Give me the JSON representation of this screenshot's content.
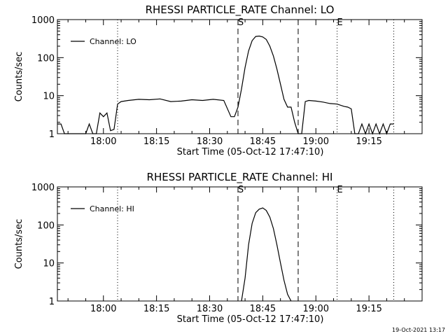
{
  "footer_timestamp": "19-Oct-2021 13:17",
  "chart_data": [
    {
      "type": "line",
      "title": "RHESSI PARTICLE_RATE Channel: LO",
      "xlabel": "Start Time (05-Oct-12 17:47:10)",
      "ylabel": "Counts/sec",
      "y_scale": "log",
      "ylim": [
        1,
        1000
      ],
      "xlim": [
        "17:47",
        "19:30"
      ],
      "x_ticks": [
        "18:00",
        "18:15",
        "18:30",
        "18:45",
        "19:00",
        "19:15"
      ],
      "y_ticks": [
        "1",
        "10",
        "100",
        "1000"
      ],
      "legend": {
        "label": "Channel: LO",
        "position": "top-left"
      },
      "markers": [
        {
          "label": "S",
          "time": "18:38"
        },
        {
          "label": "E",
          "time": "19:06"
        }
      ],
      "vlines_dashed": [
        "18:38",
        "18:55"
      ],
      "vlines_dotted": [
        "18:04",
        "19:06",
        "19:22"
      ],
      "series": [
        {
          "x": [
            "17:47",
            "17:48",
            "17:49",
            "17:50",
            "17:55",
            "17:56",
            "17:57",
            "17:58",
            "17:59",
            "18:00",
            "18:01",
            "18:02",
            "18:03",
            "18:04",
            "18:05",
            "18:07",
            "18:10",
            "18:13",
            "18:16",
            "18:19",
            "18:22",
            "18:25",
            "18:28",
            "18:31",
            "18:34",
            "18:36",
            "18:37",
            "18:38",
            "18:39",
            "18:40",
            "18:41",
            "18:42",
            "18:43",
            "18:44",
            "18:45",
            "18:46",
            "18:47",
            "18:48",
            "18:49",
            "18:50",
            "18:51",
            "18:52",
            "18:53",
            "18:54",
            "18:55",
            "18:56",
            "18:57",
            "18:58",
            "19:00",
            "19:02",
            "19:04",
            "19:06",
            "19:08",
            "19:09",
            "19:10",
            "19:11",
            "19:12",
            "19:13",
            "19:14",
            "19:15",
            "19:16",
            "19:17",
            "19:18",
            "19:19",
            "19:20",
            "19:21",
            "19:22"
          ],
          "y": [
            1.8,
            1.8,
            1,
            1,
            1,
            1.8,
            1,
            1,
            3.5,
            2.8,
            3.5,
            1.2,
            1.3,
            6,
            7,
            7.5,
            8,
            7.8,
            8.2,
            7,
            7.2,
            7.8,
            7.5,
            8,
            7.5,
            2.8,
            2.8,
            5,
            15,
            55,
            150,
            280,
            360,
            370,
            350,
            300,
            200,
            110,
            50,
            20,
            8,
            5,
            5,
            2,
            1,
            1,
            7,
            7.5,
            7.2,
            6.8,
            6.2,
            6,
            5.2,
            5,
            4.5,
            1,
            1,
            1.8,
            1,
            1.8,
            1,
            1.8,
            1,
            1.8,
            1,
            1.8,
            1.8
          ]
        }
      ]
    },
    {
      "type": "line",
      "title": "RHESSI PARTICLE_RATE Channel: HI",
      "xlabel": "Start Time (05-Oct-12 17:47:10)",
      "ylabel": "Counts/sec",
      "y_scale": "log",
      "ylim": [
        1,
        1000
      ],
      "xlim": [
        "17:47",
        "19:30"
      ],
      "x_ticks": [
        "18:00",
        "18:15",
        "18:30",
        "18:45",
        "19:00",
        "19:15"
      ],
      "y_ticks": [
        "1",
        "10",
        "100",
        "1000"
      ],
      "legend": {
        "label": "Channel: HI",
        "position": "top-left"
      },
      "markers": [
        {
          "label": "S",
          "time": "18:38"
        },
        {
          "label": "E",
          "time": "19:06"
        }
      ],
      "vlines_dashed": [
        "18:38",
        "18:55"
      ],
      "vlines_dotted": [
        "18:04",
        "19:06",
        "19:22"
      ],
      "series": [
        {
          "x": [
            "18:39",
            "18:40",
            "18:41",
            "18:42",
            "18:43",
            "18:44",
            "18:45",
            "18:46",
            "18:47",
            "18:48",
            "18:49",
            "18:50",
            "18:51",
            "18:52",
            "18:53"
          ],
          "y": [
            1,
            4,
            30,
            110,
            210,
            260,
            280,
            240,
            160,
            80,
            30,
            10,
            3.5,
            1.5,
            1
          ]
        }
      ]
    }
  ]
}
